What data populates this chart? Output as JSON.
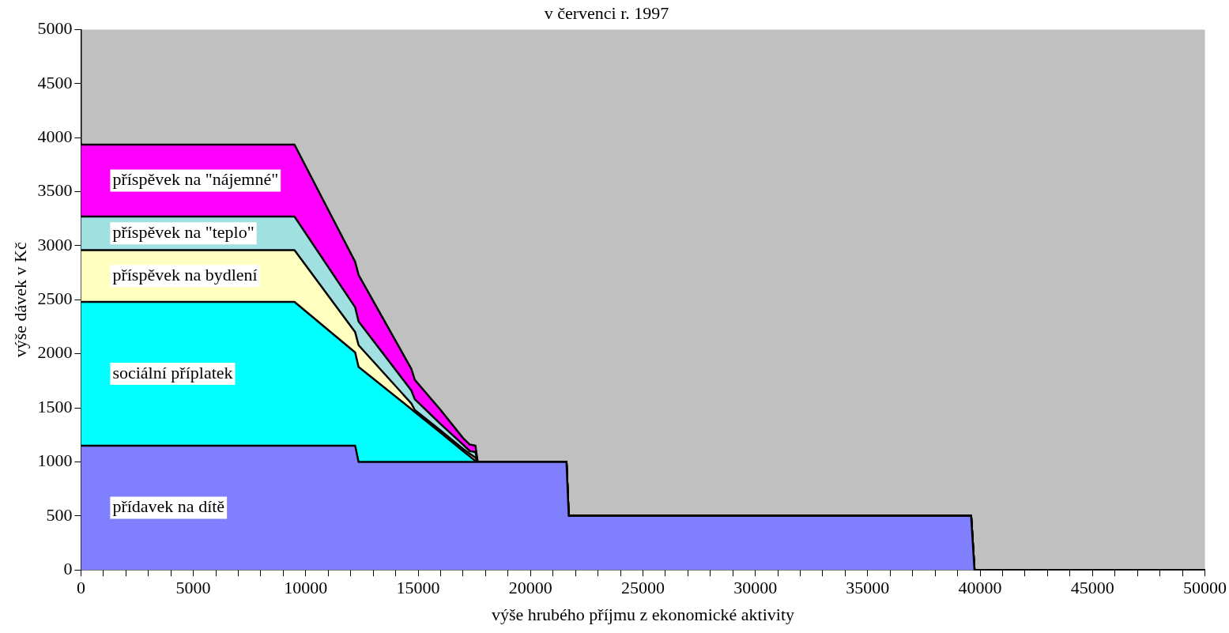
{
  "chart_data": {
    "type": "area",
    "stacked": true,
    "title": "v červenci r. 1997",
    "xlabel": "výše hrubého příjmu z ekonomické aktivity",
    "ylabel": "výše dávek v Kč",
    "x": [
      0,
      9500,
      12200,
      12350,
      14700,
      14850,
      16000,
      17000,
      17300,
      17550,
      17650,
      21600,
      21700,
      39600,
      39750,
      50000
    ],
    "series": [
      {
        "name": "přídavek na dítě",
        "color": "#8080ff",
        "values": [
          1150,
          1150,
          1150,
          1000,
          1000,
          1000,
          1000,
          1000,
          1000,
          1000,
          1000,
          1000,
          500,
          500,
          0,
          0
        ]
      },
      {
        "name": "sociální příplatek",
        "color": "#00ffff",
        "values": [
          1330,
          1330,
          862,
          879,
          488,
          462,
          270,
          100,
          50,
          8,
          0,
          0,
          0,
          0,
          0,
          0
        ]
      },
      {
        "name": "příspěvek na bydlení",
        "color": "#ffffc0",
        "values": [
          480,
          480,
          188,
          201,
          52,
          18,
          20,
          20,
          25,
          32,
          0,
          0,
          0,
          0,
          0,
          0
        ]
      },
      {
        "name": "příspěvek na \"teplo\"",
        "color": "#a0e0e0",
        "values": [
          310,
          310,
          230,
          220,
          120,
          100,
          60,
          40,
          25,
          50,
          0,
          0,
          0,
          0,
          0,
          0
        ]
      },
      {
        "name": "příspěvek na \"nájemné\"",
        "color": "#ff00ff",
        "values": [
          665,
          665,
          420,
          430,
          200,
          180,
          130,
          60,
          60,
          60,
          0,
          0,
          0,
          0,
          0,
          0
        ]
      }
    ],
    "xlim": [
      0,
      50000
    ],
    "xticks": [
      0,
      {
        "value": 1000,
        "label": null
      },
      {
        "value": 2000,
        "label": null
      },
      {
        "value": 3000,
        "label": null
      },
      {
        "value": 4000,
        "label": null
      },
      5000,
      {
        "value": 6000,
        "label": null
      },
      {
        "value": 7000,
        "label": null
      },
      {
        "value": 8000,
        "label": null
      },
      {
        "value": 9000,
        "label": null
      },
      10000,
      {
        "value": 11000,
        "label": null
      },
      {
        "value": 12000,
        "label": null
      },
      {
        "value": 13000,
        "label": null
      },
      {
        "value": 14000,
        "label": null
      },
      15000,
      {
        "value": 16000,
        "label": null
      },
      {
        "value": 17000,
        "label": null
      },
      {
        "value": 18000,
        "label": null
      },
      {
        "value": 19000,
        "label": null
      },
      20000,
      {
        "value": 21000,
        "label": null
      },
      {
        "value": 22000,
        "label": null
      },
      {
        "value": 23000,
        "label": null
      },
      {
        "value": 24000,
        "label": null
      },
      25000,
      {
        "value": 26000,
        "label": null
      },
      {
        "value": 27000,
        "label": null
      },
      {
        "value": 28000,
        "label": null
      },
      {
        "value": 29000,
        "label": null
      },
      30000,
      {
        "value": 31000,
        "label": null
      },
      {
        "value": 32000,
        "label": null
      },
      {
        "value": 33000,
        "label": null
      },
      {
        "value": 34000,
        "label": null
      },
      35000,
      {
        "value": 36000,
        "label": null
      },
      {
        "value": 37000,
        "label": null
      },
      {
        "value": 38000,
        "label": null
      },
      {
        "value": 39000,
        "label": null
      },
      40000,
      {
        "value": 41000,
        "label": null
      },
      {
        "value": 42000,
        "label": null
      },
      {
        "value": 43000,
        "label": null
      },
      {
        "value": 44000,
        "label": null
      },
      45000,
      {
        "value": 46000,
        "label": null
      },
      {
        "value": 47000,
        "label": null
      },
      {
        "value": 48000,
        "label": null
      },
      {
        "value": 49000,
        "label": null
      },
      50000
    ],
    "ylim": [
      0,
      5000
    ],
    "yticks": [
      0,
      500,
      1000,
      1500,
      2000,
      2500,
      3000,
      3500,
      4000,
      4500,
      5000
    ],
    "grid": false,
    "legend": false
  }
}
